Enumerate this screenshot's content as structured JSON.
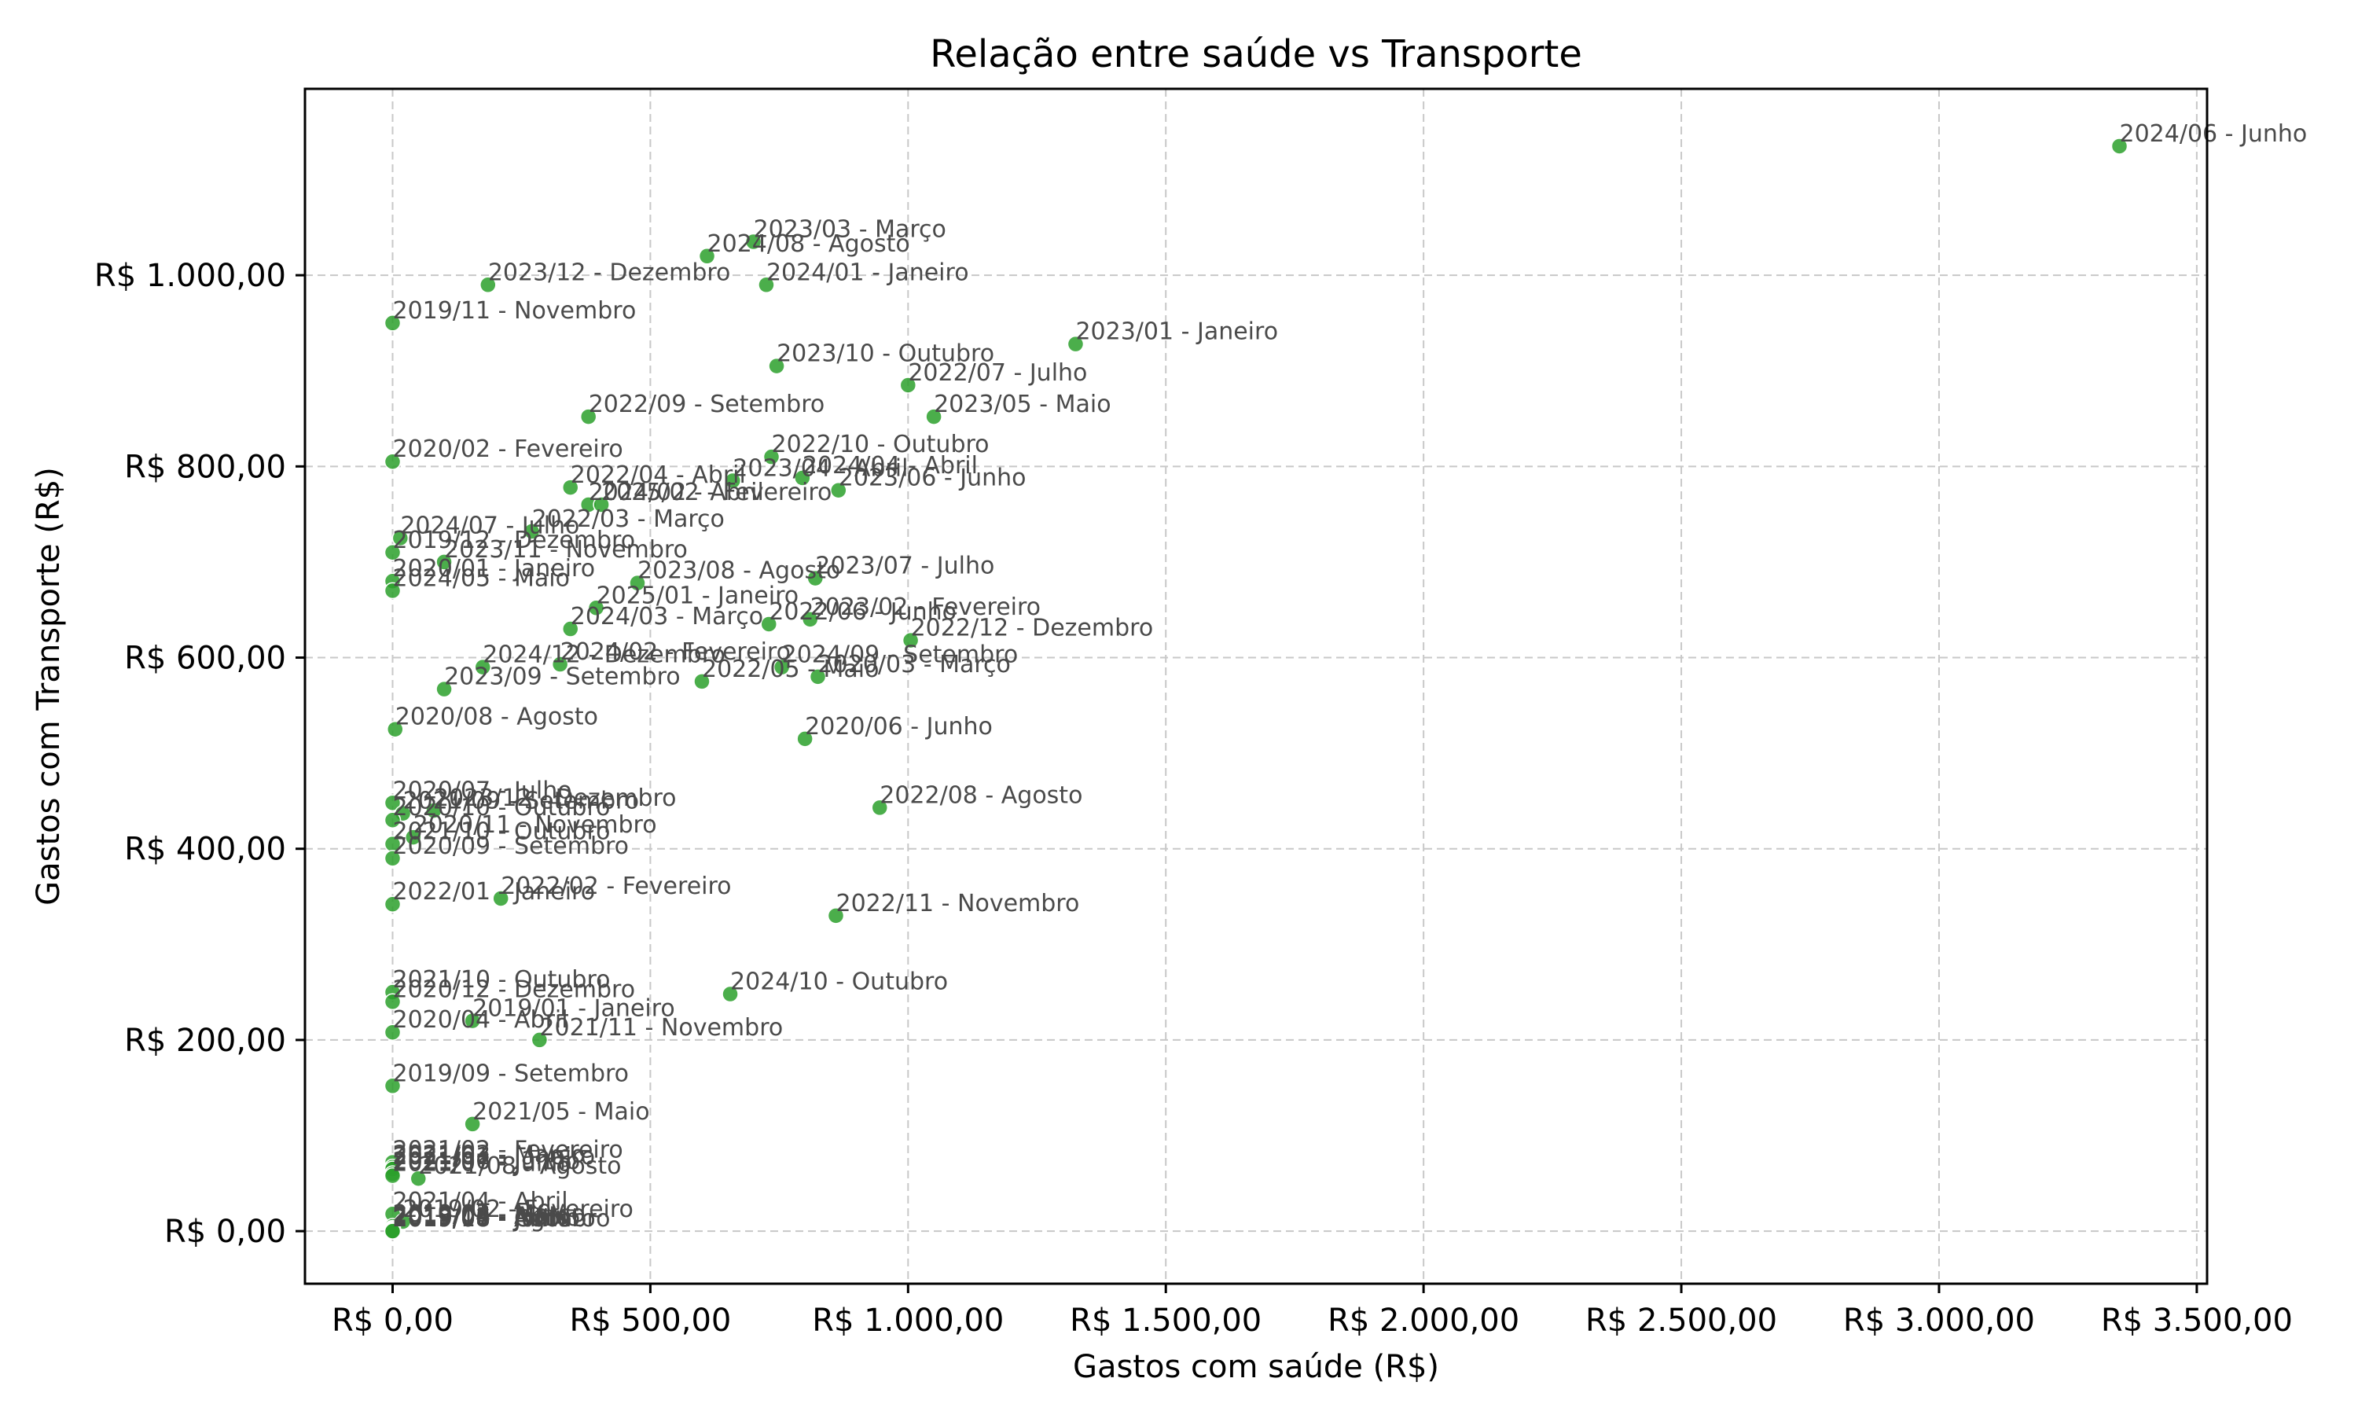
{
  "chart_data": {
    "type": "scatter",
    "title": "Relação entre saúde vs Transporte",
    "xlabel": "Gastos com saúde (R$)",
    "ylabel": "Gastos com Transporte (R$)",
    "xlim": [
      -170,
      3520
    ],
    "ylim": [
      -55,
      1195
    ],
    "grid": true,
    "marker_color": "#2ca02c",
    "x_ticks": [
      {
        "value": 0,
        "label": "R$ 0,00"
      },
      {
        "value": 500,
        "label": "R$ 500,00"
      },
      {
        "value": 1000,
        "label": "R$ 1.000,00"
      },
      {
        "value": 1500,
        "label": "R$ 1.500,00"
      },
      {
        "value": 2000,
        "label": "R$ 2.000,00"
      },
      {
        "value": 2500,
        "label": "R$ 2.500,00"
      },
      {
        "value": 3000,
        "label": "R$ 3.000,00"
      },
      {
        "value": 3500,
        "label": "R$ 3.500,00"
      }
    ],
    "y_ticks": [
      {
        "value": 0,
        "label": "R$ 0,00"
      },
      {
        "value": 200,
        "label": "R$ 200,00"
      },
      {
        "value": 400,
        "label": "R$ 400,00"
      },
      {
        "value": 600,
        "label": "R$ 600,00"
      },
      {
        "value": 800,
        "label": "R$ 800,00"
      },
      {
        "value": 1000,
        "label": "R$ 1.000,00"
      }
    ],
    "points": [
      {
        "label": "2024/06 - Junho",
        "x": 3350,
        "y": 1135
      },
      {
        "label": "2023/03 - Março",
        "x": 700,
        "y": 1035
      },
      {
        "label": "2024/08 - Agosto",
        "x": 610,
        "y": 1020
      },
      {
        "label": "2023/12 - Dezembro",
        "x": 185,
        "y": 990
      },
      {
        "label": "2024/01 - Janeiro",
        "x": 725,
        "y": 990
      },
      {
        "label": "2019/11 - Novembro",
        "x": 0,
        "y": 950
      },
      {
        "label": "2023/01 - Janeiro",
        "x": 1325,
        "y": 928
      },
      {
        "label": "2023/10 - Outubro",
        "x": 745,
        "y": 905
      },
      {
        "label": "2022/07 - Julho",
        "x": 1000,
        "y": 885
      },
      {
        "label": "2022/09 - Setembro",
        "x": 380,
        "y": 852
      },
      {
        "label": "2023/05 - Maio",
        "x": 1050,
        "y": 852
      },
      {
        "label": "2020/02 - Fevereiro",
        "x": 0,
        "y": 805
      },
      {
        "label": "2022/10 - Outubro",
        "x": 735,
        "y": 810
      },
      {
        "label": "2024/04 - Abril",
        "x": 795,
        "y": 788
      },
      {
        "label": "2023/04 - Abril",
        "x": 660,
        "y": 785
      },
      {
        "label": "2022/04 - Abril",
        "x": 345,
        "y": 778
      },
      {
        "label": "2023/06 - Junho",
        "x": 865,
        "y": 775
      },
      {
        "label": "2024/02 - Abril",
        "x": 380,
        "y": 760
      },
      {
        "label": "2025/02 - Fevereiro",
        "x": 405,
        "y": 760
      },
      {
        "label": "2022/03 - Março",
        "x": 270,
        "y": 732
      },
      {
        "label": "2024/07 - Julho",
        "x": 15,
        "y": 725
      },
      {
        "label": "2019/12 - Dezembro",
        "x": 0,
        "y": 710
      },
      {
        "label": "2023/11 - Novembro",
        "x": 100,
        "y": 700
      },
      {
        "label": "2020/01 - Janeiro",
        "x": 0,
        "y": 680
      },
      {
        "label": "2024/05 - Maio",
        "x": 0,
        "y": 670
      },
      {
        "label": "2023/08 - Agosto",
        "x": 475,
        "y": 678
      },
      {
        "label": "2023/07 - Julho",
        "x": 820,
        "y": 683
      },
      {
        "label": "2025/01 - Janeiro",
        "x": 395,
        "y": 652
      },
      {
        "label": "2024/03 - Março",
        "x": 345,
        "y": 630
      },
      {
        "label": "2022/06 - Junho",
        "x": 730,
        "y": 635
      },
      {
        "label": "2023/02 - Fevereiro",
        "x": 810,
        "y": 640
      },
      {
        "label": "2022/12 - Dezembro",
        "x": 1005,
        "y": 618
      },
      {
        "label": "2024/12 - Dezembro",
        "x": 175,
        "y": 590
      },
      {
        "label": "2024/02 - Fevereiro",
        "x": 325,
        "y": 593
      },
      {
        "label": "2024/09 - Setembro",
        "x": 755,
        "y": 590
      },
      {
        "label": "2023/09 - Setembro",
        "x": 100,
        "y": 567
      },
      {
        "label": "2022/05 - Maio",
        "x": 600,
        "y": 575
      },
      {
        "label": "2020/03 - Março",
        "x": 825,
        "y": 580
      },
      {
        "label": "2020/08 - Agosto",
        "x": 5,
        "y": 525
      },
      {
        "label": "2020/06 - Junho",
        "x": 800,
        "y": 515
      },
      {
        "label": "2020/07 - Julho",
        "x": 0,
        "y": 448
      },
      {
        "label": "2022/08 - Agosto",
        "x": 945,
        "y": 443
      },
      {
        "label": "2023/12 - Dezembro",
        "x": 80,
        "y": 440
      },
      {
        "label": "2021/09 - Setembro",
        "x": 20,
        "y": 437
      },
      {
        "label": "2020/10 - Outubro",
        "x": 0,
        "y": 430
      },
      {
        "label": "2020/11 - Novembro",
        "x": 40,
        "y": 412
      },
      {
        "label": "2021/10 - Outubro",
        "x": 0,
        "y": 405
      },
      {
        "label": "2020/09 - Setembro",
        "x": 0,
        "y": 390
      },
      {
        "label": "2022/01 - Janeiro",
        "x": 0,
        "y": 342
      },
      {
        "label": "2022/02 - Fevereiro",
        "x": 210,
        "y": 348
      },
      {
        "label": "2022/11 - Novembro",
        "x": 860,
        "y": 330
      },
      {
        "label": "2021/10 - Outubro",
        "x": 0,
        "y": 250
      },
      {
        "label": "2020/12 - Dezembro",
        "x": 0,
        "y": 240
      },
      {
        "label": "2024/10 - Outubro",
        "x": 655,
        "y": 248
      },
      {
        "label": "2019/01 - Janeiro",
        "x": 155,
        "y": 220
      },
      {
        "label": "2020/04 - Abril",
        "x": 0,
        "y": 208
      },
      {
        "label": "2021/11  - Novembro",
        "x": 285,
        "y": 200
      },
      {
        "label": "2019/09 - Setembro",
        "x": 0,
        "y": 152
      },
      {
        "label": "2021/05 - Maio",
        "x": 155,
        "y": 112
      },
      {
        "label": "2021/02 - Fevereiro",
        "x": 0,
        "y": 72
      },
      {
        "label": "2021/03 - Março",
        "x": 0,
        "y": 67
      },
      {
        "label": "2021/01 - Janeiro",
        "x": 0,
        "y": 65
      },
      {
        "label": "2021/06 - Junho",
        "x": 0,
        "y": 60
      },
      {
        "label": "2021/07 - Julho",
        "x": 0,
        "y": 58
      },
      {
        "label": "2021/08 - Agosto",
        "x": 50,
        "y": 55
      },
      {
        "label": "2021/04 - Abril",
        "x": 0,
        "y": 18
      },
      {
        "label": "2019/02 - Fevereiro",
        "x": 20,
        "y": 10
      },
      {
        "label": "2019/03 - Março",
        "x": 0,
        "y": 5
      },
      {
        "label": "2019/04 - Abril",
        "x": 0,
        "y": 3
      },
      {
        "label": "2019/05 - Maio",
        "x": 0,
        "y": 2
      },
      {
        "label": "2019/06 - Junho",
        "x": 0,
        "y": 1
      },
      {
        "label": "2019/07 - Julho",
        "x": 0,
        "y": 0
      },
      {
        "label": "2019/08 - Agosto",
        "x": 0,
        "y": 0
      },
      {
        "label": "2019/10 - Outubro",
        "x": 0,
        "y": 0
      }
    ]
  }
}
